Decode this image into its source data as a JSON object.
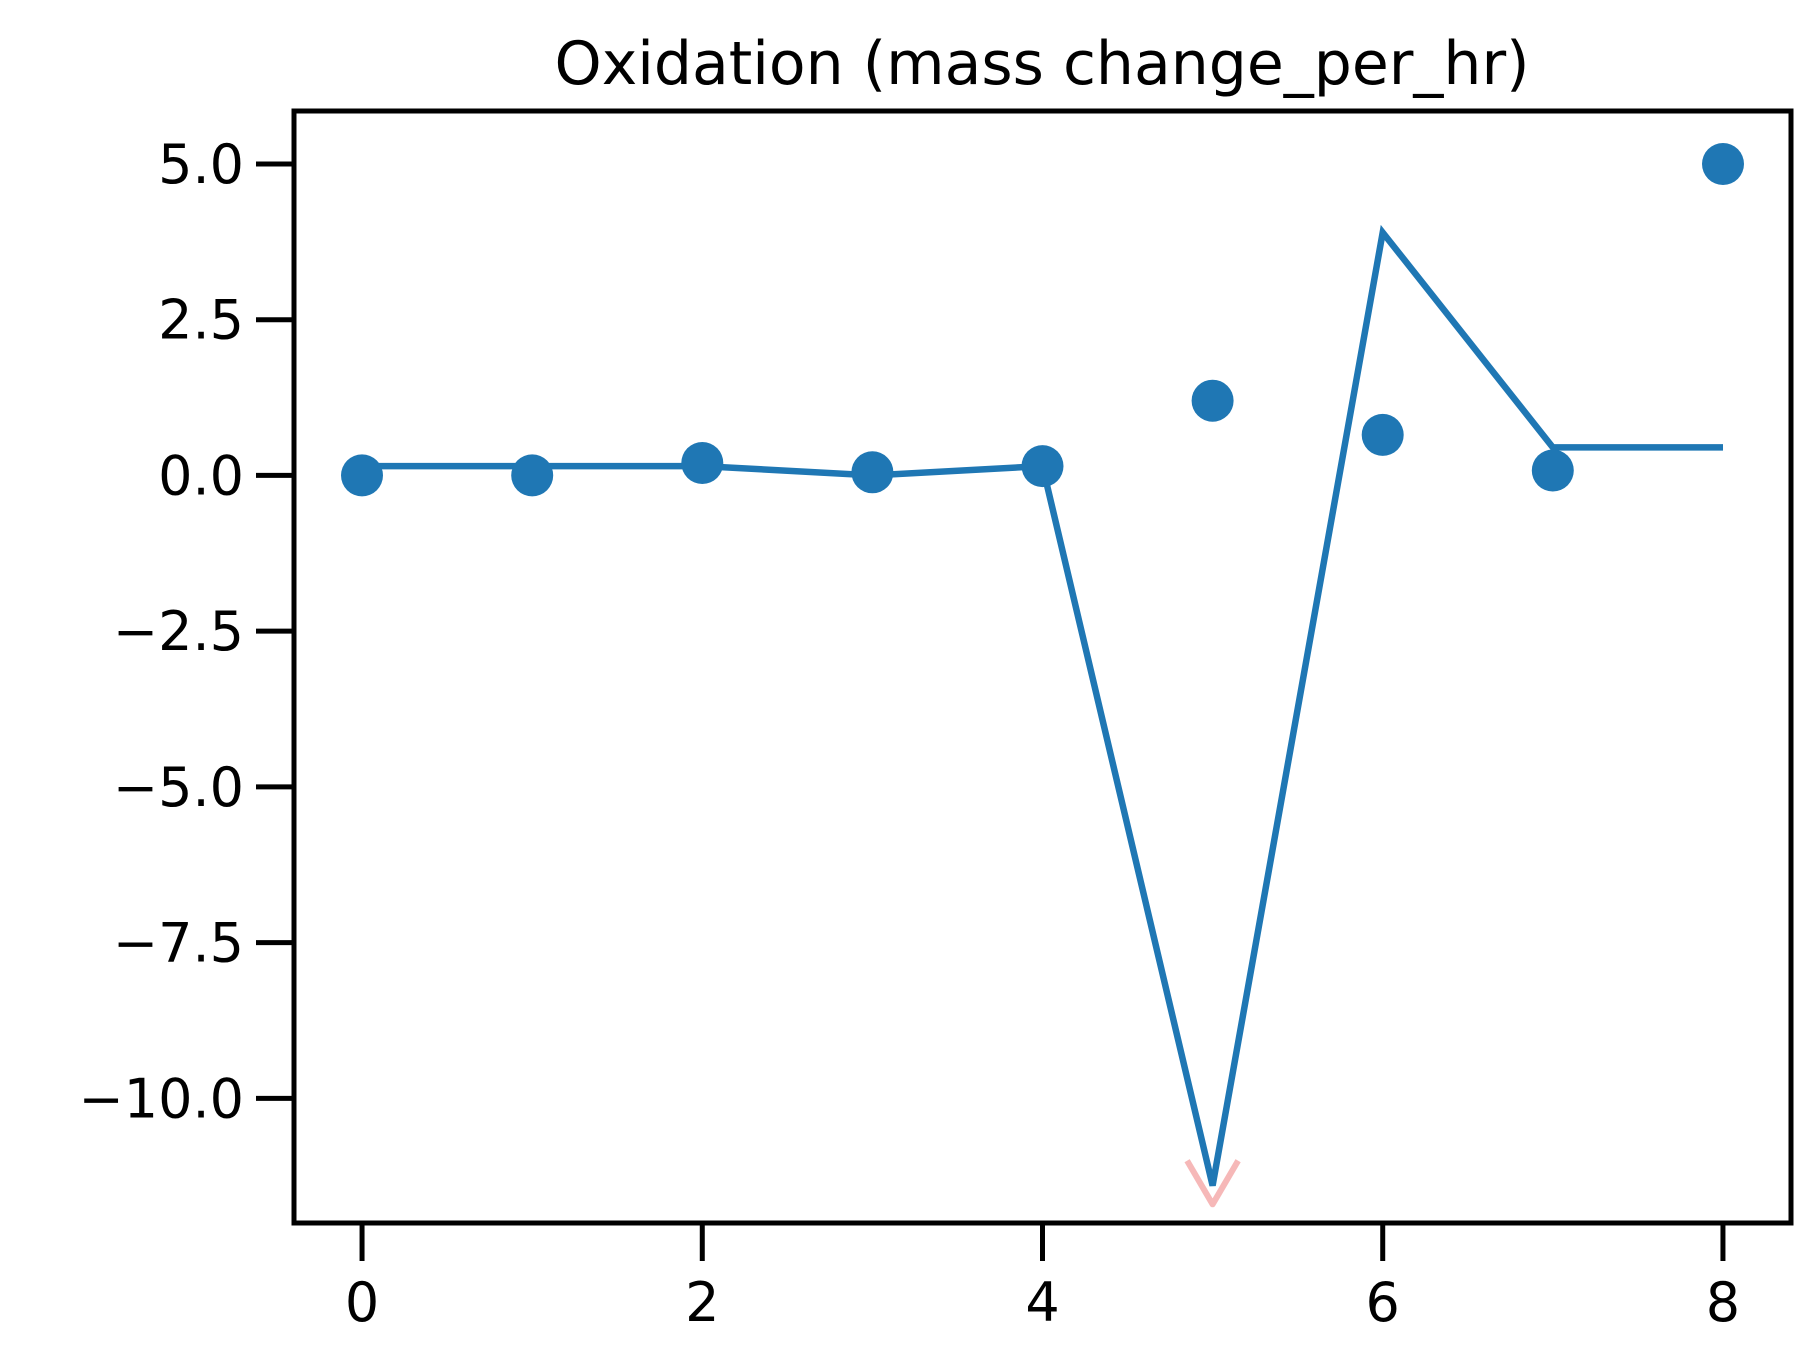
{
  "chart_data": {
    "type": "line",
    "title": "Oxidation (mass change_per_hr)",
    "xlabel": "",
    "ylabel": "",
    "xlim": [
      -0.4,
      8.4
    ],
    "ylim": [
      -12.0,
      5.85
    ],
    "xticks": [
      0,
      2,
      4,
      6,
      8
    ],
    "xtick_labels": [
      "0",
      "2",
      "4",
      "6",
      "8"
    ],
    "yticks": [
      5.0,
      2.5,
      0.0,
      -2.5,
      -5.0,
      -7.5,
      -10.0
    ],
    "ytick_labels": [
      "5.0",
      "2.5",
      "0.0",
      "−2.5",
      "−5.0",
      "−7.5",
      "−10.0"
    ],
    "grid": false,
    "legend": "none",
    "series": [
      {
        "kind": "line",
        "color": "#1f77b4",
        "x": [
          0,
          1,
          2,
          3,
          4,
          5,
          6,
          7,
          8
        ],
        "y": [
          0.15,
          0.15,
          0.15,
          0.0,
          0.15,
          -11.4,
          3.9,
          0.45,
          0.45
        ]
      },
      {
        "kind": "band",
        "color": "#f4a6a6",
        "x": [
          4.85,
          5.0,
          5.15
        ],
        "y": [
          -11.0,
          -11.7,
          -11.0
        ]
      },
      {
        "kind": "scatter",
        "color": "#1f77b4",
        "x": [
          0,
          1,
          2,
          3,
          4,
          5,
          6,
          7,
          8
        ],
        "y": [
          0.0,
          0.0,
          0.2,
          0.05,
          0.15,
          1.2,
          0.65,
          0.08,
          5.0
        ]
      }
    ]
  }
}
